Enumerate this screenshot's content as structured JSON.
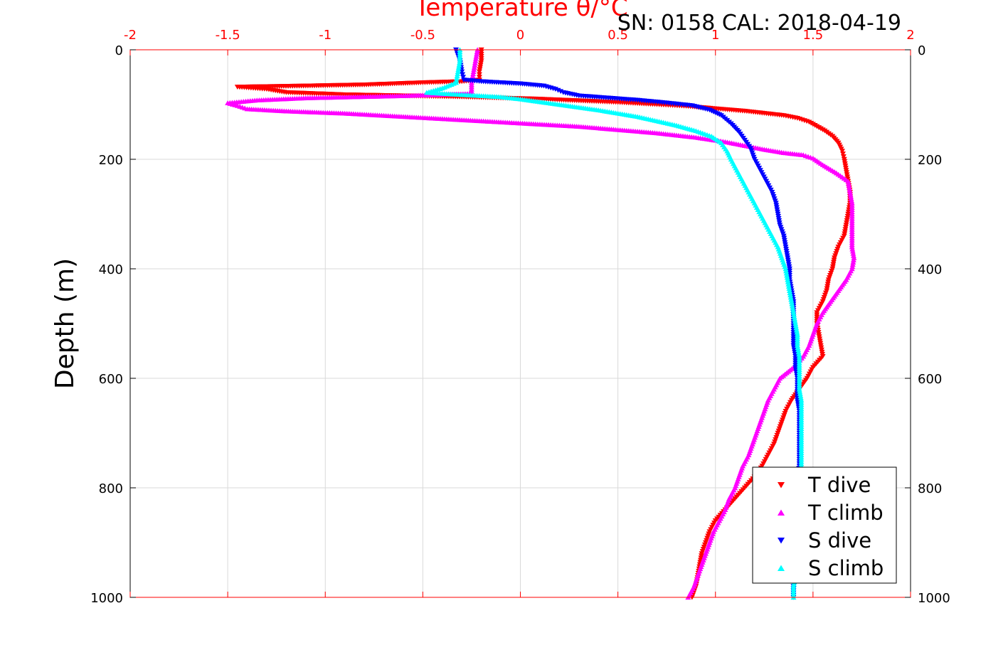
{
  "chart_data": {
    "type": "scatter",
    "title": "Temperature θ/°C",
    "annotation": "SN: 0158  CAL: 2018-04-19",
    "xlabel": "Temperature θ/°C",
    "ylabel": "Depth (m)",
    "xlim": [
      -2,
      2
    ],
    "ylim": [
      0,
      1000
    ],
    "y_reversed": true,
    "grid": true,
    "xticks": [
      "-2",
      "-1.5",
      "-1",
      "-0.5",
      "0",
      "0.5",
      "1",
      "1.5",
      "2"
    ],
    "yticks": [
      "0",
      "200",
      "400",
      "600",
      "800",
      "1000"
    ],
    "legend_position": "bottom-right",
    "series": [
      {
        "name": "T dive",
        "color": "#ff0000",
        "marker": "triangle-down",
        "points": [
          [
            -0.2,
            0
          ],
          [
            -0.2,
            20
          ],
          [
            -0.21,
            40
          ],
          [
            -0.21,
            55
          ],
          [
            -0.3,
            58
          ],
          [
            -0.5,
            60
          ],
          [
            -0.8,
            64
          ],
          [
            -1.1,
            66
          ],
          [
            -1.45,
            68
          ],
          [
            -1.3,
            72
          ],
          [
            -1.2,
            78
          ],
          [
            -0.9,
            82
          ],
          [
            -0.6,
            84
          ],
          [
            -0.3,
            86
          ],
          [
            -0.1,
            88
          ],
          [
            0.1,
            90
          ],
          [
            0.3,
            93
          ],
          [
            0.5,
            96
          ],
          [
            0.7,
            100
          ],
          [
            0.85,
            103
          ],
          [
            0.95,
            106
          ],
          [
            1.05,
            109
          ],
          [
            1.15,
            112
          ],
          [
            1.25,
            116
          ],
          [
            1.35,
            120
          ],
          [
            1.42,
            125
          ],
          [
            1.48,
            132
          ],
          [
            1.52,
            140
          ],
          [
            1.56,
            148
          ],
          [
            1.6,
            158
          ],
          [
            1.63,
            170
          ],
          [
            1.65,
            185
          ],
          [
            1.66,
            200
          ],
          [
            1.67,
            220
          ],
          [
            1.68,
            240
          ],
          [
            1.69,
            260
          ],
          [
            1.69,
            280
          ],
          [
            1.68,
            300
          ],
          [
            1.67,
            320
          ],
          [
            1.66,
            340
          ],
          [
            1.63,
            360
          ],
          [
            1.61,
            380
          ],
          [
            1.6,
            400
          ],
          [
            1.58,
            420
          ],
          [
            1.57,
            440
          ],
          [
            1.55,
            460
          ],
          [
            1.52,
            480
          ],
          [
            1.52,
            500
          ],
          [
            1.53,
            520
          ],
          [
            1.54,
            540
          ],
          [
            1.55,
            560
          ],
          [
            1.5,
            580
          ],
          [
            1.47,
            600
          ],
          [
            1.43,
            620
          ],
          [
            1.39,
            640
          ],
          [
            1.36,
            660
          ],
          [
            1.34,
            680
          ],
          [
            1.32,
            700
          ],
          [
            1.3,
            720
          ],
          [
            1.27,
            740
          ],
          [
            1.24,
            760
          ],
          [
            1.2,
            780
          ],
          [
            1.15,
            800
          ],
          [
            1.1,
            820
          ],
          [
            1.05,
            840
          ],
          [
            1.0,
            860
          ],
          [
            0.97,
            880
          ],
          [
            0.95,
            900
          ],
          [
            0.93,
            920
          ],
          [
            0.92,
            940
          ],
          [
            0.91,
            960
          ],
          [
            0.9,
            980
          ],
          [
            0.88,
            1000
          ]
        ]
      },
      {
        "name": "T climb",
        "color": "#ff00ff",
        "marker": "triangle-up",
        "points": [
          [
            -0.22,
            0
          ],
          [
            -0.23,
            20
          ],
          [
            -0.24,
            40
          ],
          [
            -0.25,
            60
          ],
          [
            -0.25,
            80
          ],
          [
            -0.6,
            84
          ],
          [
            -1.1,
            88
          ],
          [
            -1.35,
            92
          ],
          [
            -1.5,
            97
          ],
          [
            -1.45,
            102
          ],
          [
            -1.4,
            108
          ],
          [
            -1.2,
            112
          ],
          [
            -0.9,
            116
          ],
          [
            -0.7,
            120
          ],
          [
            -0.5,
            124
          ],
          [
            -0.3,
            128
          ],
          [
            -0.1,
            132
          ],
          [
            0.1,
            136
          ],
          [
            0.3,
            140
          ],
          [
            0.5,
            146
          ],
          [
            0.7,
            152
          ],
          [
            0.9,
            160
          ],
          [
            1.05,
            168
          ],
          [
            1.15,
            175
          ],
          [
            1.25,
            182
          ],
          [
            1.35,
            188
          ],
          [
            1.45,
            192
          ],
          [
            1.5,
            198
          ],
          [
            1.55,
            210
          ],
          [
            1.62,
            225
          ],
          [
            1.68,
            240
          ],
          [
            1.69,
            260
          ],
          [
            1.7,
            280
          ],
          [
            1.7,
            300
          ],
          [
            1.7,
            320
          ],
          [
            1.7,
            340
          ],
          [
            1.7,
            360
          ],
          [
            1.71,
            380
          ],
          [
            1.7,
            400
          ],
          [
            1.67,
            420
          ],
          [
            1.63,
            440
          ],
          [
            1.59,
            460
          ],
          [
            1.55,
            480
          ],
          [
            1.52,
            500
          ],
          [
            1.5,
            520
          ],
          [
            1.48,
            540
          ],
          [
            1.45,
            560
          ],
          [
            1.4,
            580
          ],
          [
            1.33,
            600
          ],
          [
            1.3,
            620
          ],
          [
            1.27,
            640
          ],
          [
            1.25,
            660
          ],
          [
            1.23,
            680
          ],
          [
            1.21,
            700
          ],
          [
            1.19,
            720
          ],
          [
            1.17,
            740
          ],
          [
            1.14,
            760
          ],
          [
            1.12,
            780
          ],
          [
            1.1,
            800
          ],
          [
            1.07,
            820
          ],
          [
            1.05,
            840
          ],
          [
            1.02,
            860
          ],
          [
            0.99,
            880
          ],
          [
            0.97,
            900
          ],
          [
            0.95,
            920
          ],
          [
            0.93,
            940
          ],
          [
            0.91,
            960
          ],
          [
            0.89,
            980
          ],
          [
            0.86,
            1000
          ]
        ]
      },
      {
        "name": "S dive",
        "color": "#0000ff",
        "marker": "triangle-down",
        "points": [
          [
            -0.33,
            0
          ],
          [
            -0.31,
            20
          ],
          [
            -0.3,
            40
          ],
          [
            -0.29,
            55
          ],
          [
            -0.2,
            58
          ],
          [
            0.0,
            62
          ],
          [
            0.12,
            66
          ],
          [
            0.18,
            72
          ],
          [
            0.22,
            78
          ],
          [
            0.3,
            84
          ],
          [
            0.45,
            88
          ],
          [
            0.6,
            92
          ],
          [
            0.75,
            97
          ],
          [
            0.88,
            102
          ],
          [
            0.97,
            110
          ],
          [
            1.03,
            120
          ],
          [
            1.08,
            135
          ],
          [
            1.12,
            150
          ],
          [
            1.15,
            165
          ],
          [
            1.18,
            180
          ],
          [
            1.2,
            200
          ],
          [
            1.23,
            220
          ],
          [
            1.26,
            240
          ],
          [
            1.29,
            260
          ],
          [
            1.31,
            280
          ],
          [
            1.32,
            300
          ],
          [
            1.33,
            320
          ],
          [
            1.35,
            340
          ],
          [
            1.36,
            360
          ],
          [
            1.37,
            380
          ],
          [
            1.38,
            400
          ],
          [
            1.38,
            420
          ],
          [
            1.39,
            440
          ],
          [
            1.4,
            460
          ],
          [
            1.4,
            480
          ],
          [
            1.4,
            500
          ],
          [
            1.4,
            520
          ],
          [
            1.4,
            540
          ],
          [
            1.41,
            560
          ],
          [
            1.41,
            580
          ],
          [
            1.42,
            600
          ],
          [
            1.42,
            620
          ],
          [
            1.42,
            640
          ],
          [
            1.43,
            660
          ],
          [
            1.43,
            680
          ],
          [
            1.43,
            700
          ],
          [
            1.43,
            720
          ],
          [
            1.43,
            740
          ],
          [
            1.43,
            760
          ],
          [
            1.42,
            780
          ],
          [
            1.42,
            800
          ],
          [
            1.42,
            820
          ],
          [
            1.41,
            840
          ],
          [
            1.41,
            860
          ],
          [
            1.41,
            880
          ],
          [
            1.41,
            900
          ],
          [
            1.41,
            920
          ],
          [
            1.4,
            940
          ],
          [
            1.4,
            960
          ],
          [
            1.4,
            980
          ],
          [
            1.4,
            1000
          ]
        ]
      },
      {
        "name": "S climb",
        "color": "#00ffff",
        "marker": "triangle-up",
        "points": [
          [
            -0.31,
            0
          ],
          [
            -0.31,
            20
          ],
          [
            -0.32,
            40
          ],
          [
            -0.33,
            60
          ],
          [
            -0.4,
            70
          ],
          [
            -0.48,
            78
          ],
          [
            -0.3,
            82
          ],
          [
            -0.1,
            86
          ],
          [
            0.0,
            90
          ],
          [
            0.1,
            95
          ],
          [
            0.2,
            100
          ],
          [
            0.3,
            105
          ],
          [
            0.4,
            110
          ],
          [
            0.5,
            116
          ],
          [
            0.6,
            122
          ],
          [
            0.7,
            130
          ],
          [
            0.8,
            138
          ],
          [
            0.9,
            148
          ],
          [
            0.98,
            158
          ],
          [
            1.03,
            170
          ],
          [
            1.06,
            185
          ],
          [
            1.08,
            200
          ],
          [
            1.11,
            220
          ],
          [
            1.14,
            240
          ],
          [
            1.17,
            260
          ],
          [
            1.2,
            280
          ],
          [
            1.23,
            300
          ],
          [
            1.26,
            320
          ],
          [
            1.29,
            340
          ],
          [
            1.32,
            360
          ],
          [
            1.34,
            380
          ],
          [
            1.36,
            400
          ],
          [
            1.37,
            420
          ],
          [
            1.38,
            440
          ],
          [
            1.39,
            460
          ],
          [
            1.4,
            480
          ],
          [
            1.41,
            500
          ],
          [
            1.42,
            520
          ],
          [
            1.42,
            540
          ],
          [
            1.43,
            560
          ],
          [
            1.43,
            580
          ],
          [
            1.43,
            600
          ],
          [
            1.43,
            620
          ],
          [
            1.44,
            640
          ],
          [
            1.44,
            660
          ],
          [
            1.44,
            680
          ],
          [
            1.44,
            700
          ],
          [
            1.44,
            720
          ],
          [
            1.44,
            740
          ],
          [
            1.44,
            760
          ],
          [
            1.44,
            780
          ],
          [
            1.43,
            800
          ],
          [
            1.43,
            820
          ],
          [
            1.43,
            840
          ],
          [
            1.42,
            860
          ],
          [
            1.42,
            880
          ],
          [
            1.42,
            900
          ],
          [
            1.41,
            920
          ],
          [
            1.41,
            940
          ],
          [
            1.41,
            960
          ],
          [
            1.4,
            980
          ],
          [
            1.4,
            1000
          ]
        ]
      }
    ]
  }
}
